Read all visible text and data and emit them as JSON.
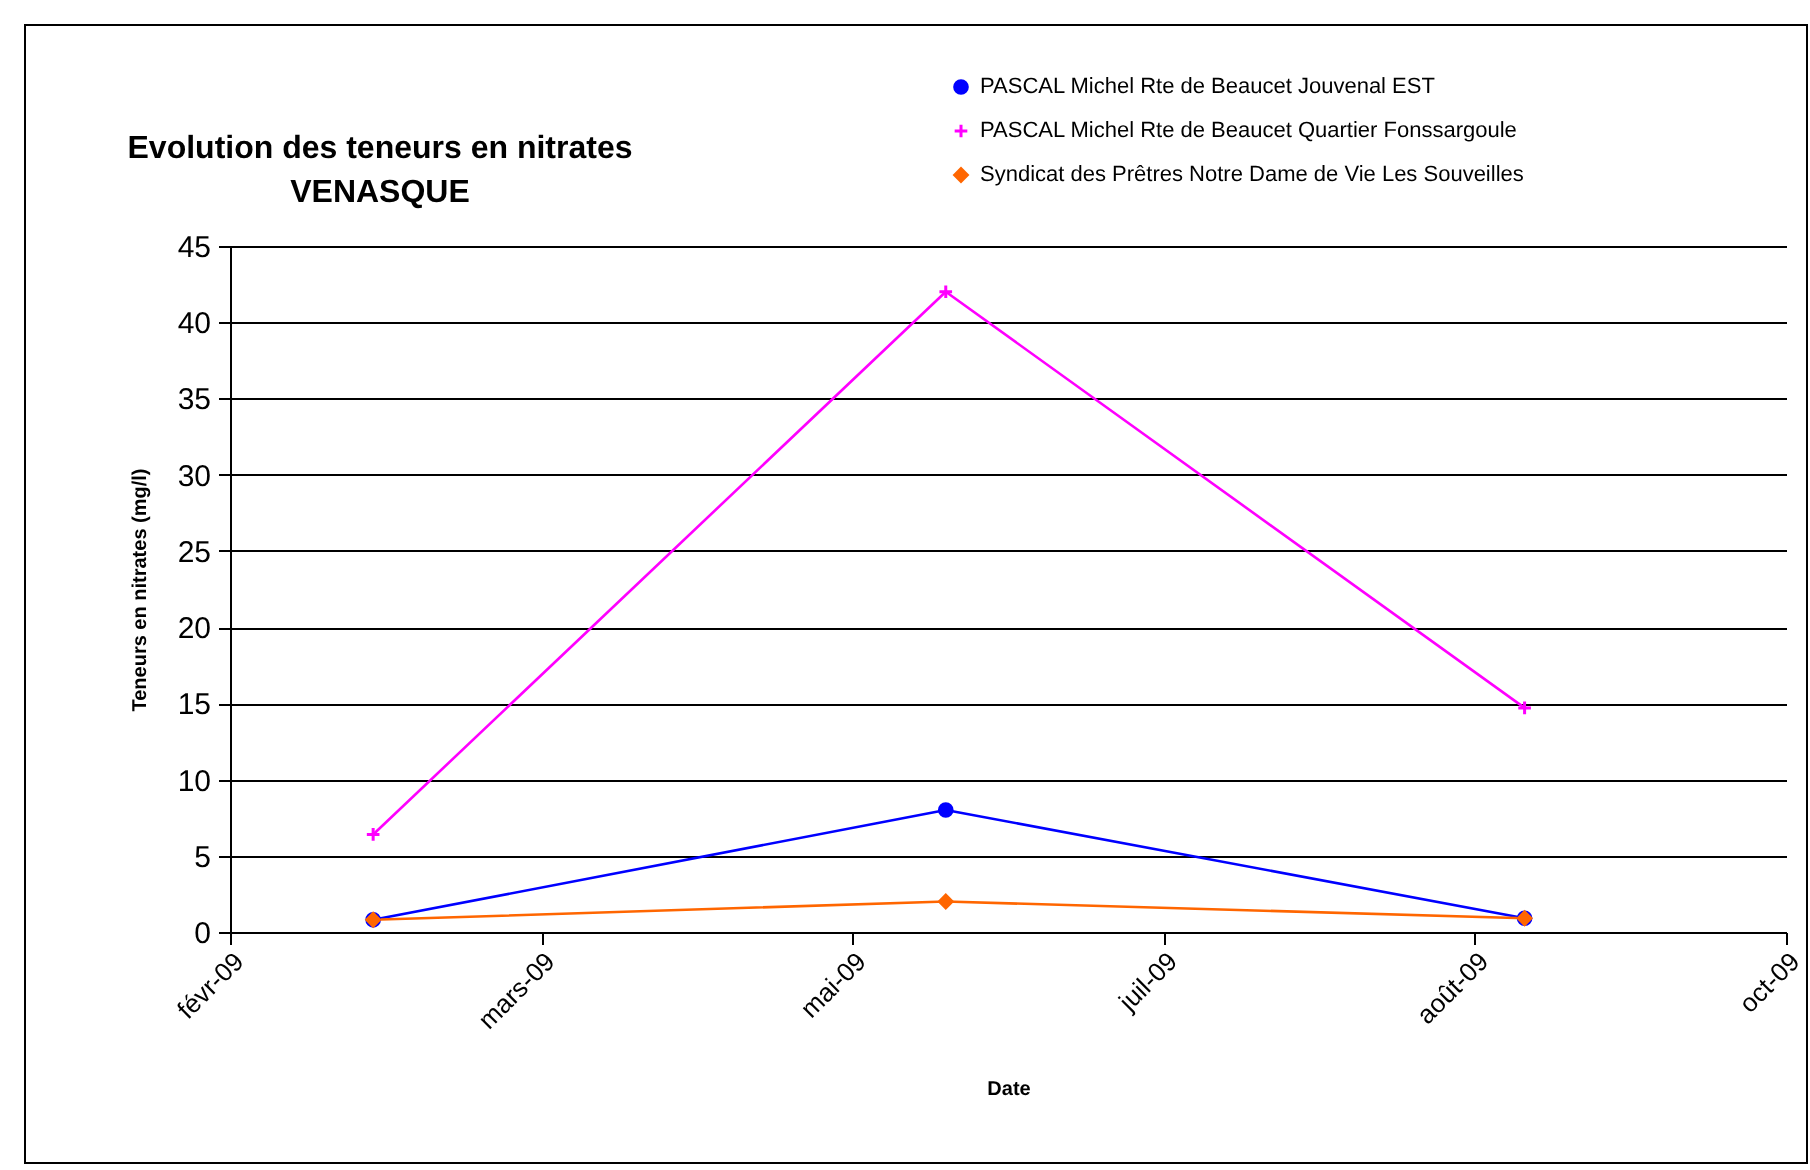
{
  "chart_data": {
    "type": "line",
    "title": "Evolution des teneurs en nitrates\nVENASQUE",
    "xlabel": "Date",
    "ylabel": "Teneurs en nitrates (mg/l)",
    "x": [
      "2009-02-24",
      "2009-05-27",
      "2009-08-28"
    ],
    "series": [
      {
        "name": "PASCAL Michel Rte de Beaucet Jouvenal EST",
        "color": "#0000ff",
        "marker": "circle",
        "values": [
          0.8,
          8,
          0.9
        ]
      },
      {
        "name": "PASCAL Michel Rte de Beaucet Quartier Fonssargoule",
        "color": "#ff00ff",
        "marker": "cross",
        "values": [
          6.4,
          42,
          14.7
        ]
      },
      {
        "name": "Syndicat des Prêtres Notre Dame de Vie Les Souveilles",
        "color": "#ff6600",
        "marker": "diamond",
        "values": [
          0.8,
          2,
          0.9
        ]
      }
    ],
    "xlim": [
      "2009-02-01",
      "2009-10-09"
    ],
    "xticks": [
      {
        "value": "2009-02-01",
        "label": "févr-09"
      },
      {
        "value": "2009-03-23",
        "label": "mars-09"
      },
      {
        "value": "2009-05-12",
        "label": "mai-09"
      },
      {
        "value": "2009-07-01",
        "label": "juil-09"
      },
      {
        "value": "2009-08-20",
        "label": "août-09"
      },
      {
        "value": "2009-10-09",
        "label": "oct-09"
      }
    ],
    "ylim": [
      0,
      45
    ],
    "yticks": [
      0,
      5,
      10,
      15,
      20,
      25,
      30,
      35,
      40,
      45
    ],
    "grid": "y",
    "legend": "top right"
  }
}
